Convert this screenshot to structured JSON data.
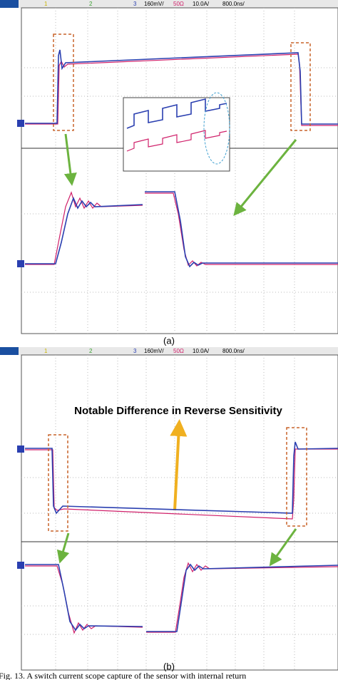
{
  "panel_a": {
    "header": {
      "ch1": "1",
      "ch2": "2",
      "ch3": "3",
      "scale1": "160mV/",
      "impedance": "50Ω",
      "scale2": "10.0A/",
      "timebase": "800.0ns/"
    },
    "label": "(a)"
  },
  "panel_b": {
    "header": {
      "ch1": "1",
      "ch2": "2",
      "ch3": "3",
      "scale1": "160mV/",
      "impedance": "50Ω",
      "scale2": "10.0A/",
      "timebase": "800.0ns/"
    },
    "annotation": "Notable Difference in Reverse Sensitivity",
    "label": "(b)"
  },
  "caption": "Fig. 13.  A switch current scope capture of the sensor with internal return"
}
